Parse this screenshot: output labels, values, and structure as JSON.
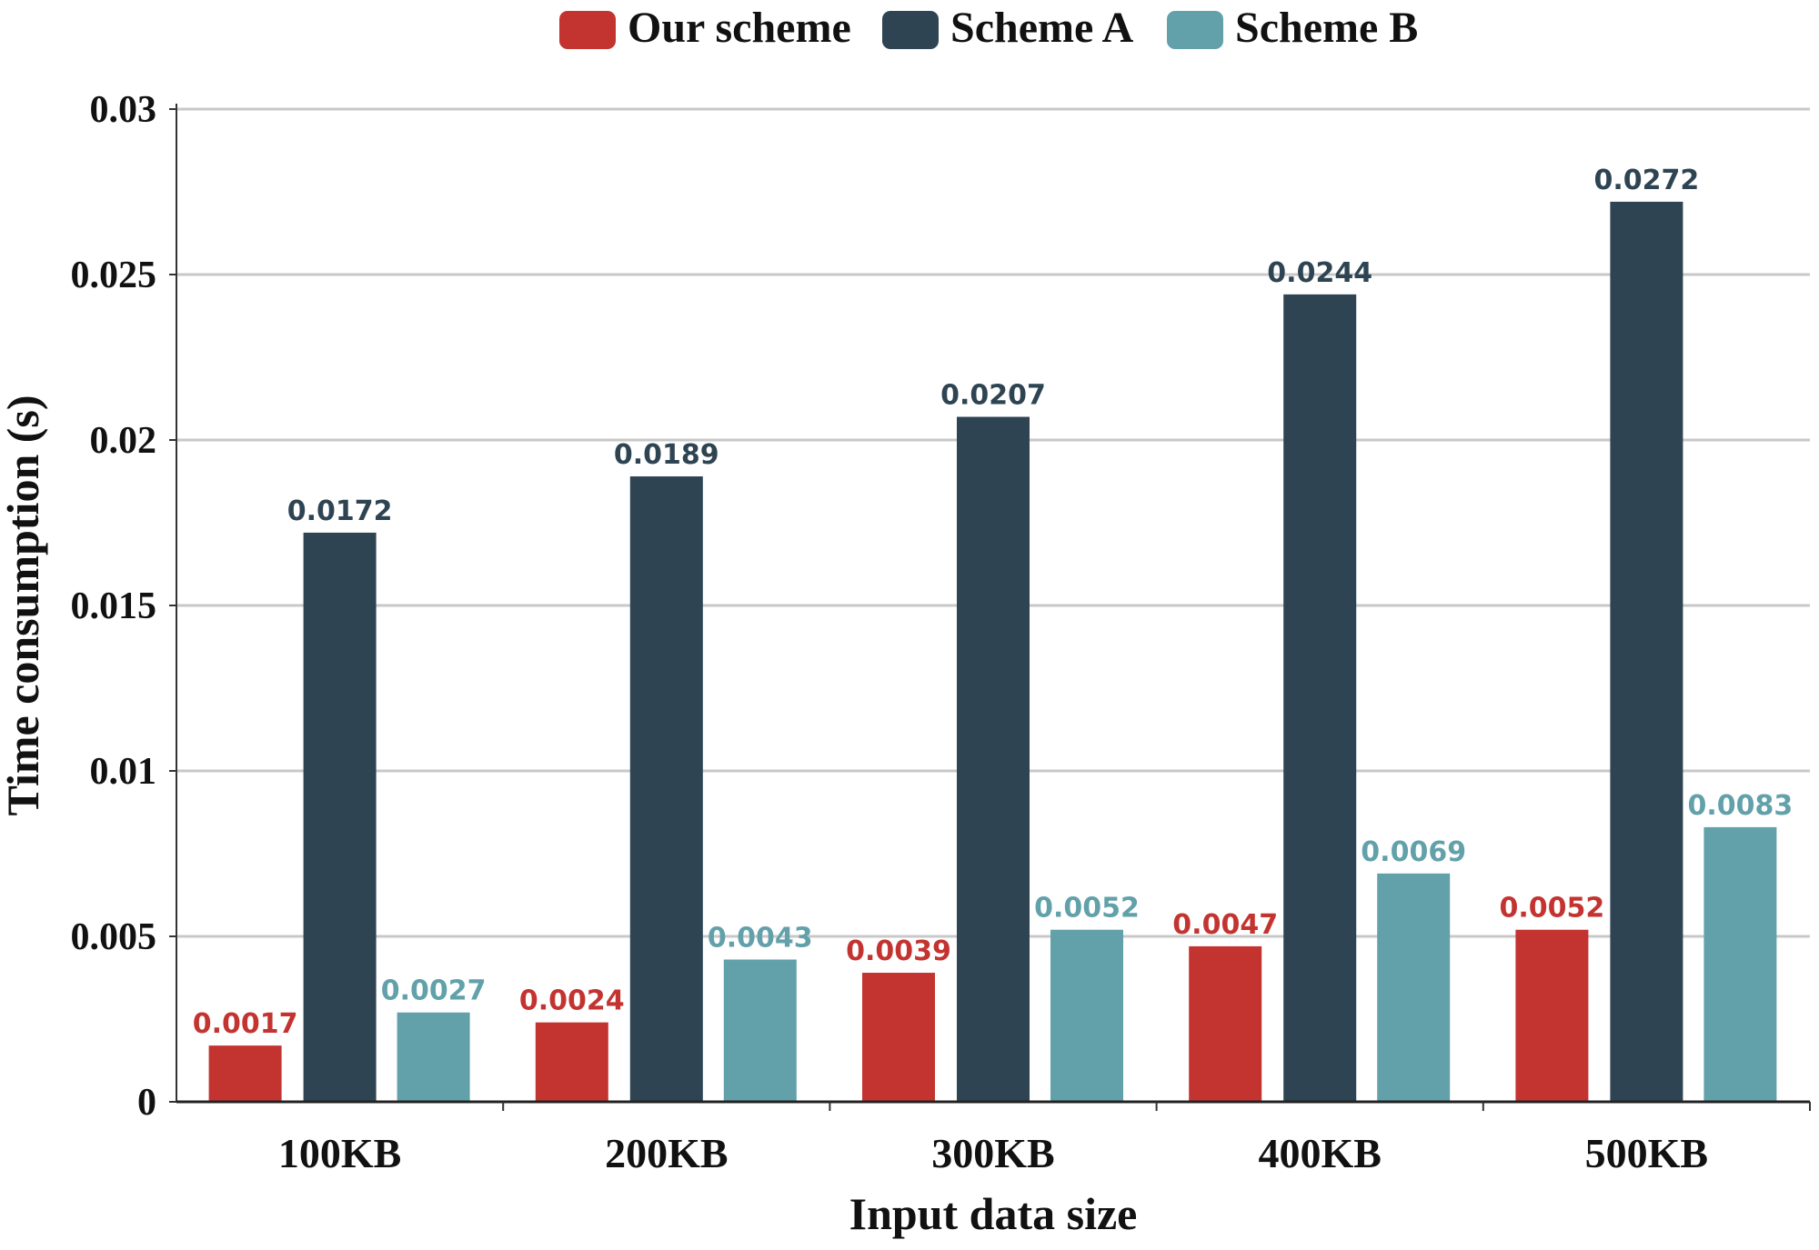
{
  "chart_data": {
    "type": "bar",
    "title": "",
    "xlabel": "Input data size",
    "ylabel": "Time consumption (s)",
    "categories": [
      "100KB",
      "200KB",
      "300KB",
      "400KB",
      "500KB"
    ],
    "ylim": [
      0,
      0.03
    ],
    "yticks": [
      "0",
      "0.005",
      "0.01",
      "0.015",
      "0.02",
      "0.025",
      "0.03"
    ],
    "ytick_values": [
      0,
      0.005,
      0.01,
      0.015,
      0.02,
      0.025,
      0.03
    ],
    "grid": true,
    "legend_position": "top",
    "series": [
      {
        "name": "Our scheme",
        "color": "#c33431",
        "values": [
          0.0017,
          0.0024,
          0.0039,
          0.0047,
          0.0052
        ],
        "labels": [
          "0.0017",
          "0.0024",
          "0.0039",
          "0.0047",
          "0.0052"
        ]
      },
      {
        "name": "Scheme A",
        "color": "#2e4452",
        "values": [
          0.0172,
          0.0189,
          0.0207,
          0.0244,
          0.0272
        ],
        "labels": [
          "0.0172",
          "0.0189",
          "0.0207",
          "0.0244",
          "0.0272"
        ]
      },
      {
        "name": "Scheme B",
        "color": "#62a1aa",
        "values": [
          0.0027,
          0.0043,
          0.0052,
          0.0069,
          0.0083
        ],
        "labels": [
          "0.0027",
          "0.0043",
          "0.0052",
          "0.0069",
          "0.0083"
        ]
      }
    ]
  }
}
